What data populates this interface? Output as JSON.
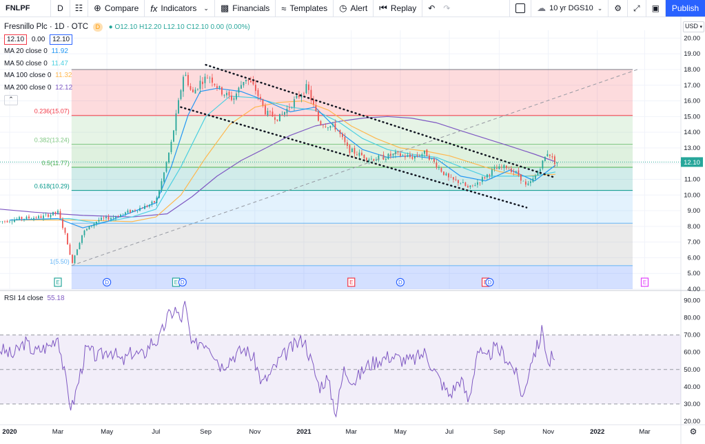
{
  "toolbar": {
    "symbol": "FNLPF",
    "interval": "D",
    "compare": "Compare",
    "indicators": "Indicators",
    "financials": "Financials",
    "templates": "Templates",
    "alert": "Alert",
    "replay": "Replay",
    "benchmark": "10 yr DGS10",
    "publish": "Publish",
    "icons": [
      "candles-icon",
      "plus-circle-icon",
      "fx-icon",
      "chevron-down-icon",
      "financials-icon",
      "templates-icon",
      "alarm-clock-icon",
      "replay-icon",
      "undo-icon",
      "redo-icon",
      "layout-icon",
      "cloud-icon",
      "gear-icon",
      "fullscreen-icon",
      "camera-icon"
    ]
  },
  "header": {
    "title": "Fresnillo Plc · 1D · OTC",
    "d_badge": "D",
    "ohlc": {
      "o": "O12.10",
      "h": "H12.20",
      "l": "L12.10",
      "c": "C12.10",
      "chg": "0.00 (0.00%)"
    },
    "bid": "12.10",
    "spread": "0.00",
    "ask": "12.10",
    "currency": "USD"
  },
  "ma_legend": [
    {
      "label": "MA 20 close 0",
      "value": "11.92",
      "color": "#2196f3"
    },
    {
      "label": "MA 50 close 0",
      "value": "11.47",
      "color": "#4dd0e1"
    },
    {
      "label": "MA 100 close 0",
      "value": "11.32",
      "color": "#ffb74d"
    },
    {
      "label": "MA 200 close 0",
      "value": "12.12",
      "color": "#7e57c2"
    }
  ],
  "chart_data": [
    {
      "type": "candlestick",
      "title": "Fresnillo Plc · 1D · OTC",
      "ylim": [
        4.0,
        20.5
      ],
      "y_ticks": [
        "20.00",
        "19.00",
        "18.00",
        "17.00",
        "16.00",
        "15.00",
        "14.00",
        "13.00",
        "12.00",
        "11.00",
        "10.00",
        "9.00",
        "8.00",
        "7.00",
        "6.00",
        "5.00",
        "4.00"
      ],
      "x_ticks": [
        "2020",
        "Mar",
        "May",
        "Jul",
        "Sep",
        "Nov",
        "2021",
        "Mar",
        "May",
        "Jul",
        "Sep",
        "Nov",
        "2022",
        "Mar"
      ],
      "last_price": "12.10",
      "fibonacci": [
        {
          "label": "0.236(15.07)",
          "value": 15.07
        },
        {
          "label": "0.382(13.24)",
          "value": 13.24
        },
        {
          "label": "0.5(11.77)",
          "value": 11.77
        },
        {
          "label": "0.618(10.29)",
          "value": 10.29
        },
        {
          "label": "1(5.50)",
          "value": 5.5
        }
      ],
      "fib_top": 18.0,
      "price_path": [
        [
          "2019-12-20",
          8.3
        ],
        [
          "2020-01-15",
          8.5
        ],
        [
          "2020-02-10",
          8.6
        ],
        [
          "2020-03-01",
          8.9
        ],
        [
          "2020-03-12",
          7.2
        ],
        [
          "2020-03-18",
          5.6
        ],
        [
          "2020-04-01",
          7.6
        ],
        [
          "2020-04-20",
          8.4
        ],
        [
          "2020-05-10",
          8.6
        ],
        [
          "2020-06-01",
          9.0
        ],
        [
          "2020-06-20",
          9.3
        ],
        [
          "2020-07-01",
          9.6
        ],
        [
          "2020-07-10",
          11.2
        ],
        [
          "2020-07-20",
          13.3
        ],
        [
          "2020-07-28",
          15.6
        ],
        [
          "2020-08-05",
          17.9
        ],
        [
          "2020-08-15",
          16.4
        ],
        [
          "2020-08-25",
          17.2
        ],
        [
          "2020-09-05",
          17.6
        ],
        [
          "2020-09-20",
          16.6
        ],
        [
          "2020-10-05",
          16.1
        ],
        [
          "2020-10-20",
          17.5
        ],
        [
          "2020-11-01",
          16.8
        ],
        [
          "2020-11-15",
          15.2
        ],
        [
          "2020-12-01",
          14.9
        ],
        [
          "2020-12-15",
          15.7
        ],
        [
          "2021-01-05",
          16.9
        ],
        [
          "2021-01-20",
          14.6
        ],
        [
          "2021-02-10",
          14.3
        ],
        [
          "2021-02-25",
          12.9
        ],
        [
          "2021-03-10",
          12.6
        ],
        [
          "2021-03-25",
          12.3
        ],
        [
          "2021-04-10",
          12.4
        ],
        [
          "2021-04-25",
          12.6
        ],
        [
          "2021-05-15",
          12.4
        ],
        [
          "2021-06-01",
          12.7
        ],
        [
          "2021-06-15",
          11.9
        ],
        [
          "2021-07-01",
          11.0
        ],
        [
          "2021-07-15",
          10.8
        ],
        [
          "2021-07-25",
          10.4
        ],
        [
          "2021-08-10",
          11.0
        ],
        [
          "2021-08-25",
          11.6
        ],
        [
          "2021-09-10",
          11.8
        ],
        [
          "2021-09-25",
          11.3
        ],
        [
          "2021-10-05",
          10.5
        ],
        [
          "2021-10-15",
          11.1
        ],
        [
          "2021-10-25",
          12.1
        ],
        [
          "2021-11-01",
          12.8
        ],
        [
          "2021-11-08",
          12.1
        ],
        [
          "2021-11-12",
          12.1
        ]
      ],
      "ma20": [
        [
          "2020-01-01",
          8.4
        ],
        [
          "2020-03-01",
          8.5
        ],
        [
          "2020-04-01",
          7.9
        ],
        [
          "2020-05-01",
          8.3
        ],
        [
          "2020-06-01",
          8.9
        ],
        [
          "2020-07-01",
          9.5
        ],
        [
          "2020-07-20",
          11.8
        ],
        [
          "2020-08-10",
          15.1
        ],
        [
          "2020-08-25",
          16.6
        ],
        [
          "2020-09-15",
          16.8
        ],
        [
          "2020-10-15",
          16.6
        ],
        [
          "2020-11-15",
          16.0
        ],
        [
          "2020-12-15",
          15.3
        ],
        [
          "2021-01-15",
          15.6
        ],
        [
          "2021-02-15",
          14.0
        ],
        [
          "2021-03-15",
          12.9
        ],
        [
          "2021-04-15",
          12.4
        ],
        [
          "2021-05-15",
          12.5
        ],
        [
          "2021-06-15",
          12.3
        ],
        [
          "2021-07-15",
          11.2
        ],
        [
          "2021-08-15",
          10.9
        ],
        [
          "2021-09-15",
          11.6
        ],
        [
          "2021-10-15",
          10.9
        ],
        [
          "2021-11-10",
          11.9
        ]
      ],
      "ma50": [
        [
          "2020-01-01",
          8.4
        ],
        [
          "2020-03-15",
          8.5
        ],
        [
          "2020-04-20",
          8.2
        ],
        [
          "2020-06-01",
          8.6
        ],
        [
          "2020-07-01",
          9.1
        ],
        [
          "2020-08-01",
          11.8
        ],
        [
          "2020-09-01",
          15.0
        ],
        [
          "2020-10-01",
          16.3
        ],
        [
          "2020-11-01",
          16.2
        ],
        [
          "2020-12-15",
          15.6
        ],
        [
          "2021-01-15",
          15.4
        ],
        [
          "2021-02-15",
          14.6
        ],
        [
          "2021-03-15",
          13.6
        ],
        [
          "2021-04-15",
          12.9
        ],
        [
          "2021-05-15",
          12.6
        ],
        [
          "2021-06-15",
          12.4
        ],
        [
          "2021-07-15",
          11.8
        ],
        [
          "2021-08-15",
          11.2
        ],
        [
          "2021-09-15",
          11.2
        ],
        [
          "2021-10-15",
          11.2
        ],
        [
          "2021-11-10",
          11.47
        ]
      ],
      "ma100": [
        [
          "2020-01-01",
          8.4
        ],
        [
          "2020-04-01",
          8.4
        ],
        [
          "2020-06-01",
          8.3
        ],
        [
          "2020-07-01",
          8.6
        ],
        [
          "2020-08-01",
          10.0
        ],
        [
          "2020-09-01",
          12.4
        ],
        [
          "2020-10-01",
          14.5
        ],
        [
          "2020-11-01",
          15.6
        ],
        [
          "2020-12-01",
          15.9
        ],
        [
          "2021-01-01",
          16.0
        ],
        [
          "2021-02-01",
          15.4
        ],
        [
          "2021-03-01",
          14.4
        ],
        [
          "2021-04-01",
          13.6
        ],
        [
          "2021-05-01",
          13.0
        ],
        [
          "2021-06-01",
          12.8
        ],
        [
          "2021-07-01",
          12.5
        ],
        [
          "2021-08-01",
          12.0
        ],
        [
          "2021-09-01",
          11.5
        ],
        [
          "2021-10-01",
          11.2
        ],
        [
          "2021-11-10",
          11.32
        ]
      ],
      "ma200": [
        [
          "2019-12-20",
          9.1
        ],
        [
          "2020-02-01",
          8.9
        ],
        [
          "2020-04-01",
          8.7
        ],
        [
          "2020-06-01",
          8.6
        ],
        [
          "2020-07-15",
          8.8
        ],
        [
          "2020-08-15",
          9.9
        ],
        [
          "2020-09-15",
          11.2
        ],
        [
          "2020-10-15",
          12.2
        ],
        [
          "2020-11-15",
          13.0
        ],
        [
          "2020-12-15",
          13.8
        ],
        [
          "2021-01-15",
          14.4
        ],
        [
          "2021-02-15",
          14.7
        ],
        [
          "2021-03-15",
          14.9
        ],
        [
          "2021-04-15",
          15.0
        ],
        [
          "2021-05-15",
          14.9
        ],
        [
          "2021-06-15",
          14.6
        ],
        [
          "2021-07-15",
          14.1
        ],
        [
          "2021-08-15",
          13.6
        ],
        [
          "2021-09-15",
          13.1
        ],
        [
          "2021-10-15",
          12.6
        ],
        [
          "2021-11-10",
          12.12
        ]
      ],
      "trendlines": [
        {
          "from": [
            "2020-09-01",
            18.3
          ],
          "to": [
            "2021-11-10",
            11.1
          ],
          "style": "dotted"
        },
        {
          "from": [
            "2020-08-01",
            15.6
          ],
          "to": [
            "2021-10-05",
            9.2
          ],
          "style": "dotted"
        },
        {
          "from": [
            "2020-03-18",
            5.5
          ],
          "to": [
            "2022-02-20",
            18.0
          ],
          "style": "dashed"
        }
      ],
      "events": [
        {
          "date": "2020-03-01",
          "label": "E",
          "color": "#26a69a"
        },
        {
          "date": "2020-05-01",
          "label": "D",
          "color": "#2962ff"
        },
        {
          "date": "2020-07-26",
          "label": "E",
          "color": "#26a69a"
        },
        {
          "date": "2020-08-03",
          "label": "D",
          "color": "#2962ff"
        },
        {
          "date": "2021-03-01",
          "label": "E",
          "color": "#f23645"
        },
        {
          "date": "2021-05-01",
          "label": "D",
          "color": "#2962ff"
        },
        {
          "date": "2021-08-15",
          "label": "E",
          "color": "#f23645"
        },
        {
          "date": "2021-08-20",
          "label": "D",
          "color": "#2962ff"
        },
        {
          "date": "2022-03-01",
          "label": "E",
          "color": "#e040fb"
        }
      ]
    },
    {
      "type": "line",
      "title": "RSI 14 close",
      "value": "55.18",
      "ylim": [
        20,
        95
      ],
      "y_ticks": [
        "90.00",
        "80.00",
        "70.00",
        "60.00",
        "50.00",
        "40.00",
        "30.00",
        "20.00"
      ],
      "bands": [
        30,
        50,
        70
      ],
      "rsi_path": [
        [
          "2019-12-20",
          62
        ],
        [
          "2020-01-05",
          58
        ],
        [
          "2020-01-20",
          66
        ],
        [
          "2020-02-01",
          60
        ],
        [
          "2020-02-20",
          64
        ],
        [
          "2020-03-01",
          70
        ],
        [
          "2020-03-10",
          45
        ],
        [
          "2020-03-18",
          27
        ],
        [
          "2020-03-25",
          40
        ],
        [
          "2020-04-05",
          62
        ],
        [
          "2020-04-20",
          57
        ],
        [
          "2020-05-05",
          62
        ],
        [
          "2020-05-20",
          54
        ],
        [
          "2020-06-01",
          60
        ],
        [
          "2020-06-15",
          58
        ],
        [
          "2020-06-25",
          66
        ],
        [
          "2020-07-05",
          67
        ],
        [
          "2020-07-15",
          80
        ],
        [
          "2020-07-25",
          85
        ],
        [
          "2020-08-01",
          78
        ],
        [
          "2020-08-06",
          88
        ],
        [
          "2020-08-15",
          62
        ],
        [
          "2020-08-25",
          67
        ],
        [
          "2020-09-05",
          65
        ],
        [
          "2020-09-20",
          52
        ],
        [
          "2020-10-05",
          58
        ],
        [
          "2020-10-20",
          62
        ],
        [
          "2020-11-01",
          55
        ],
        [
          "2020-11-10",
          42
        ],
        [
          "2020-11-20",
          47
        ],
        [
          "2020-12-01",
          55
        ],
        [
          "2020-12-15",
          62
        ],
        [
          "2021-01-01",
          68
        ],
        [
          "2021-01-10",
          55
        ],
        [
          "2021-01-20",
          40
        ],
        [
          "2021-01-30",
          45
        ],
        [
          "2021-02-10",
          25
        ],
        [
          "2021-02-20",
          50
        ],
        [
          "2021-03-05",
          43
        ],
        [
          "2021-03-20",
          52
        ],
        [
          "2021-04-05",
          56
        ],
        [
          "2021-04-20",
          58
        ],
        [
          "2021-05-01",
          56
        ],
        [
          "2021-05-15",
          55
        ],
        [
          "2021-06-01",
          60
        ],
        [
          "2021-06-15",
          47
        ],
        [
          "2021-07-01",
          35
        ],
        [
          "2021-07-15",
          45
        ],
        [
          "2021-07-25",
          31
        ],
        [
          "2021-08-05",
          62
        ],
        [
          "2021-08-15",
          55
        ],
        [
          "2021-08-25",
          62
        ],
        [
          "2021-09-05",
          60
        ],
        [
          "2021-09-20",
          50
        ],
        [
          "2021-10-01",
          33
        ],
        [
          "2021-10-10",
          55
        ],
        [
          "2021-10-20",
          65
        ],
        [
          "2021-10-25",
          74
        ],
        [
          "2021-11-01",
          52
        ],
        [
          "2021-11-05",
          57
        ],
        [
          "2021-11-10",
          55.18
        ]
      ]
    }
  ]
}
